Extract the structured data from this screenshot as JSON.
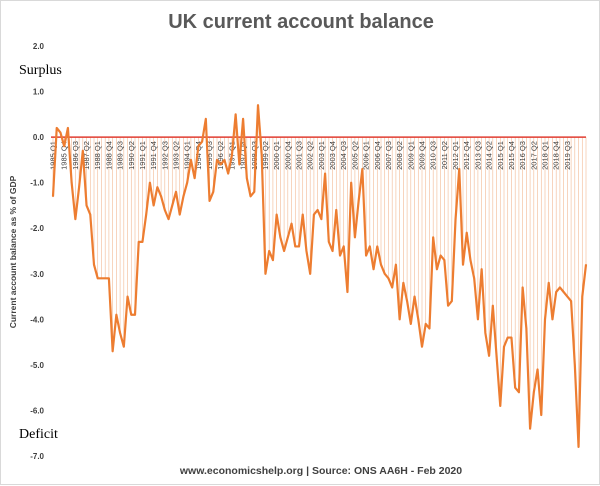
{
  "chart_data": {
    "type": "line",
    "title": "UK current account balance",
    "ylabel": "Current account balance as % of GDP",
    "xlabel": "",
    "ylim": [
      -7.0,
      2.0
    ],
    "yticks": [
      "2.0",
      "1.0",
      "0.0",
      "-1.0",
      "-2.0",
      "-3.0",
      "-4.0",
      "-5.0",
      "-6.0",
      "-7.0"
    ],
    "ytick_values": [
      2,
      1,
      0,
      -1,
      -2,
      -3,
      -4,
      -5,
      -6,
      -7
    ],
    "x_tick_labels": [
      "1985 Q1",
      "1985 Q4",
      "1986 Q3",
      "1987 Q2",
      "1988 Q1",
      "1988 Q4",
      "1989 Q3",
      "1990 Q2",
      "1991 Q1",
      "1991 Q4",
      "1992 Q3",
      "1993 Q2",
      "1994 Q1",
      "1994 Q4",
      "1995 Q3",
      "1996 Q2",
      "1997 Q1",
      "1997 Q4",
      "1998 Q3",
      "1999 Q2",
      "2000 Q1",
      "2000 Q4",
      "2001 Q3",
      "2002 Q2",
      "2003 Q1",
      "2003 Q4",
      "2004 Q3",
      "2005 Q2",
      "2006 Q1",
      "2006 Q4",
      "2007 Q3",
      "2008 Q2",
      "2009 Q1",
      "2009 Q4",
      "2010 Q3",
      "2011 Q2",
      "2012 Q1",
      "2012 Q4",
      "2013 Q3",
      "2014 Q2",
      "2015 Q1",
      "2015 Q4",
      "2016 Q3",
      "2017 Q2",
      "2018 Q1",
      "2018 Q4",
      "2019 Q3"
    ],
    "x_tick_every": 3,
    "grid": false,
    "zero_line_color": "#e03c31",
    "line_color": "#ed7d31",
    "drop_line_color": "#f2b994",
    "annotations": [
      "Surplus",
      "Deficit"
    ],
    "source": "www.economicshelp.org | Source: ONS AA6H - Feb 2020",
    "series": [
      {
        "values": [
          -1.3,
          0.2,
          0.1,
          -0.2,
          0.2,
          -1.0,
          -1.8,
          -1.1,
          -0.3,
          -1.5,
          -1.7,
          -2.8,
          -3.1,
          -3.1,
          -3.1,
          -3.1,
          -4.7,
          -3.9,
          -4.3,
          -4.6,
          -3.5,
          -3.9,
          -3.9,
          -2.3,
          -2.3,
          -1.7,
          -1.0,
          -1.5,
          -1.1,
          -1.3,
          -1.6,
          -1.8,
          -1.5,
          -1.2,
          -1.7,
          -1.3,
          -1.0,
          -0.5,
          -0.9,
          -0.2,
          -0.1,
          0.4,
          -1.4,
          -1.2,
          -0.5,
          -0.6,
          -0.5,
          -0.8,
          -0.4,
          0.5,
          -0.6,
          0.4,
          -0.9,
          -1.3,
          -1.2,
          0.7,
          -0.4,
          -3.0,
          -2.5,
          -2.7,
          -1.7,
          -2.2,
          -2.5,
          -2.2,
          -1.9,
          -2.4,
          -2.4,
          -1.7,
          -2.5,
          -3.0,
          -1.7,
          -1.6,
          -1.8,
          -0.8,
          -2.3,
          -2.5,
          -1.6,
          -2.6,
          -2.4,
          -3.4,
          -1.0,
          -2.2,
          -1.4,
          -0.7,
          -2.6,
          -2.4,
          -2.9,
          -2.4,
          -2.8,
          -3.0,
          -3.1,
          -3.3,
          -2.8,
          -4.0,
          -3.2,
          -3.6,
          -4.1,
          -3.5,
          -4.0,
          -4.6,
          -4.1,
          -4.2,
          -2.2,
          -2.9,
          -2.6,
          -2.7,
          -3.7,
          -3.6,
          -1.8,
          -0.7,
          -2.8,
          -2.1,
          -2.7,
          -3.1,
          -4.0,
          -2.9,
          -4.3,
          -4.8,
          -3.7,
          -4.8,
          -5.9,
          -4.6,
          -4.4,
          -4.4,
          -5.5,
          -5.6,
          -3.3,
          -4.2,
          -6.4,
          -5.6,
          -5.1,
          -6.1,
          -4.0,
          -3.2,
          -4.0,
          -3.4,
          -3.3,
          -3.4,
          -3.5,
          -3.6,
          -5.0,
          -6.8,
          -3.5,
          -2.8
        ]
      }
    ]
  }
}
